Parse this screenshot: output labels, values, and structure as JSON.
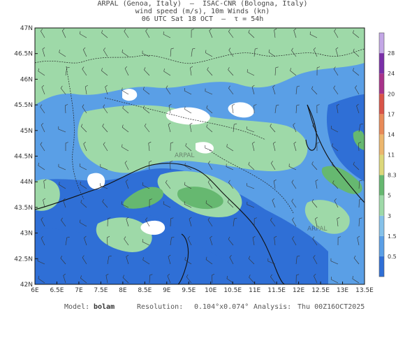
{
  "header": {
    "line1": "ARPAL (Genoa, Italy)  —  ISAC-CNR (Bologna, Italy)",
    "line2": "wind speed (m/s), 10m Winds (kn)",
    "line3": "06 UTC Sat 18 OCT  —  τ = 54h"
  },
  "map": {
    "lat_labels": [
      "47N",
      "46.5N",
      "46N",
      "45.5N",
      "45N",
      "44.5N",
      "44N",
      "43.5N",
      "43N",
      "42.5N",
      "42N"
    ],
    "lon_labels": [
      "6E",
      "6.5E",
      "7E",
      "7.5E",
      "8E",
      "8.5E",
      "9E",
      "9.5E",
      "10E",
      "10.5E",
      "11E",
      "11.5E",
      "12E",
      "12.5E",
      "13E",
      "13.5E"
    ],
    "field_colors": {
      "c0": "#2f6fd6",
      "c1": "#5a9fe6",
      "c2": "#85c1e9",
      "c3": "#9ed9a8",
      "c4": "#66b870",
      "c5": "#ffffff"
    },
    "watermark": "ARPAL"
  },
  "colorbar": {
    "ticks": [
      "0.5",
      "1.5",
      "3",
      "5",
      "8.3",
      "11",
      "14",
      "17",
      "20",
      "24",
      "28"
    ],
    "colors": [
      "#2f6fd6",
      "#5a9fe6",
      "#85c1e9",
      "#9ed9a8",
      "#66b870",
      "#dcd77a",
      "#ecb66e",
      "#e88a58",
      "#d95448",
      "#a8328a",
      "#7a2fa8",
      "#c3a7e6"
    ]
  },
  "footer": {
    "model_label": "Model:",
    "model_value": "bolam",
    "resolution_label": "Resolution:",
    "resolution_value": "0.104°x0.074°",
    "analysis_label": "Analysis:",
    "analysis_value": "Thu 00Z16OCT2025"
  }
}
